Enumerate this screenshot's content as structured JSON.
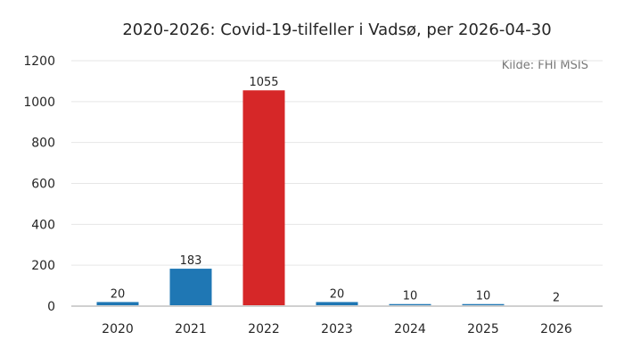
{
  "chart_data": {
    "type": "bar",
    "title": "2020-2026: Covid-19-tilfeller i Vadsø, per 2026-04-30",
    "source": "Kilde: FHI MSIS",
    "categories": [
      "2020",
      "2021",
      "2022",
      "2023",
      "2024",
      "2025",
      "2026"
    ],
    "values": [
      20,
      183,
      1055,
      20,
      10,
      10,
      2
    ],
    "bar_colors": [
      "#1f77b4",
      "#1f77b4",
      "#d62728",
      "#1f77b4",
      "#1f77b4",
      "#1f77b4",
      "#1f77b4"
    ],
    "ylim": [
      0,
      1200
    ],
    "yticks": [
      0,
      200,
      400,
      600,
      800,
      1000,
      1200
    ],
    "xlabel": "",
    "ylabel": "",
    "grid": true,
    "legend": false
  }
}
